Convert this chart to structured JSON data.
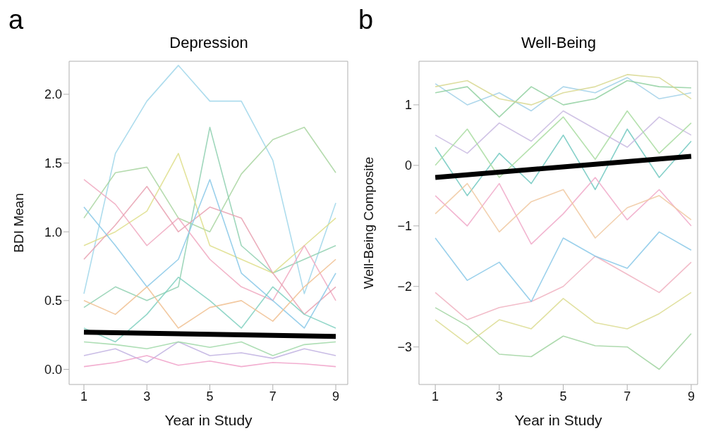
{
  "chart_data": [
    {
      "type": "line",
      "title": "Depression",
      "xlabel": "Year in Study",
      "ylabel": "BDI Mean",
      "annotations": [
        "a"
      ],
      "x": [
        1,
        2,
        3,
        4,
        5,
        6,
        7,
        8,
        9
      ],
      "xlim": [
        0.53,
        9.38
      ],
      "xticks": [
        1,
        3,
        5,
        7,
        9
      ],
      "ylim": [
        -0.11,
        2.24
      ],
      "yticks": [
        {
          "value": 0,
          "label": "0.0"
        },
        0.5,
        {
          "value": 1,
          "label": "1.0"
        },
        1.5,
        {
          "value": 2,
          "label": "2.0"
        }
      ],
      "series": [
        {
          "color": "#9fd6ea",
          "values": [
            0.55,
            1.57,
            1.95,
            2.21,
            1.95,
            1.95,
            1.52,
            0.55,
            1.21
          ]
        },
        {
          "color": "#a8d5a0",
          "values": [
            1.1,
            1.43,
            1.47,
            1.1,
            1.0,
            1.42,
            1.67,
            1.76,
            1.43
          ]
        },
        {
          "color": "#8fd0b0",
          "values": [
            0.45,
            0.6,
            0.5,
            0.6,
            1.76,
            0.9,
            0.7,
            0.8,
            0.9
          ]
        },
        {
          "color": "#dede8a",
          "values": [
            0.9,
            1.0,
            1.15,
            1.57,
            0.9,
            0.8,
            0.7,
            0.9,
            1.1
          ]
        },
        {
          "color": "#f0a8c0",
          "values": [
            1.38,
            1.2,
            0.9,
            1.1,
            0.8,
            0.6,
            0.5,
            0.9,
            0.5
          ]
        },
        {
          "color": "#e8a0b0",
          "values": [
            0.8,
            1.05,
            1.33,
            1.0,
            1.18,
            1.1,
            0.7,
            0.4,
            0.6
          ]
        },
        {
          "color": "#88c8e8",
          "values": [
            1.18,
            0.9,
            0.6,
            0.8,
            1.38,
            0.7,
            0.5,
            0.3,
            0.7
          ]
        },
        {
          "color": "#80d0c0",
          "values": [
            0.3,
            0.2,
            0.4,
            0.67,
            0.5,
            0.3,
            0.6,
            0.4,
            0.3
          ]
        },
        {
          "color": "#c0b0e0",
          "values": [
            0.1,
            0.15,
            0.05,
            0.2,
            0.1,
            0.12,
            0.08,
            0.15,
            0.1
          ]
        },
        {
          "color": "#f0c090",
          "values": [
            0.5,
            0.4,
            0.6,
            0.3,
            0.45,
            0.5,
            0.35,
            0.6,
            0.8
          ]
        },
        {
          "color": "#f0a0c8",
          "values": [
            0.02,
            0.05,
            0.1,
            0.03,
            0.06,
            0.02,
            0.05,
            0.04,
            0.02
          ]
        },
        {
          "color": "#a0d8a8",
          "values": [
            0.2,
            0.18,
            0.15,
            0.2,
            0.16,
            0.2,
            0.1,
            0.18,
            0.2
          ]
        },
        {
          "color": "#000000",
          "values": [
            0.27,
            null,
            null,
            null,
            null,
            null,
            null,
            null,
            0.24
          ]
        }
      ]
    },
    {
      "type": "line",
      "title": "Well-Being",
      "xlabel": "Year in Study",
      "ylabel": "Well-Being Composite",
      "annotations": [
        "b"
      ],
      "x": [
        1,
        2,
        3,
        4,
        5,
        6,
        7,
        8,
        9
      ],
      "xlim": [
        0.49,
        9.2
      ],
      "xticks": [
        1,
        3,
        5,
        7,
        9
      ],
      "ylim": [
        -3.62,
        1.72
      ],
      "yticks": [
        {
          "value": -3,
          "label": "−3"
        },
        {
          "value": -2,
          "label": "−2"
        },
        {
          "value": -1,
          "label": "−1"
        },
        0,
        1
      ],
      "series": [
        {
          "color": "#a0d4a0",
          "values": [
            -2.35,
            -2.65,
            -3.12,
            -3.16,
            -2.82,
            -2.98,
            -3.0,
            -3.37,
            -2.78
          ]
        },
        {
          "color": "#dcdc90",
          "values": [
            -2.55,
            -2.95,
            -2.55,
            -2.7,
            -2.2,
            -2.6,
            -2.7,
            -2.45,
            -2.1
          ]
        },
        {
          "color": "#f0b0c0",
          "values": [
            -2.1,
            -2.55,
            -2.35,
            -2.25,
            -2.0,
            -1.5,
            -1.8,
            -2.1,
            -1.6
          ]
        },
        {
          "color": "#a0d0e8",
          "values": [
            1.35,
            1.0,
            1.2,
            0.9,
            1.3,
            1.2,
            1.45,
            1.1,
            1.2
          ]
        },
        {
          "color": "#90d0a0",
          "values": [
            1.2,
            1.3,
            0.8,
            1.3,
            1.0,
            1.1,
            1.4,
            1.3,
            1.28
          ]
        },
        {
          "color": "#d8d890",
          "values": [
            1.3,
            1.4,
            1.1,
            1.0,
            1.2,
            1.3,
            1.5,
            1.45,
            1.1
          ]
        },
        {
          "color": "#70c8c0",
          "values": [
            0.3,
            -0.5,
            0.2,
            -0.3,
            0.5,
            -0.4,
            0.6,
            -0.2,
            0.4
          ]
        },
        {
          "color": "#f0a8c8",
          "values": [
            -0.5,
            -1.0,
            -0.3,
            -1.3,
            -0.8,
            -0.2,
            -0.9,
            -0.4,
            -1.0
          ]
        },
        {
          "color": "#88c8e8",
          "values": [
            -1.2,
            -1.9,
            -1.6,
            -2.25,
            -1.2,
            -1.5,
            -1.7,
            -1.1,
            -1.4
          ]
        },
        {
          "color": "#c8b8e0",
          "values": [
            0.5,
            0.2,
            0.7,
            0.4,
            0.9,
            0.6,
            0.3,
            0.8,
            0.5
          ]
        },
        {
          "color": "#f0c8a0",
          "values": [
            -0.8,
            -0.3,
            -1.1,
            -0.6,
            -0.4,
            -1.2,
            -0.7,
            -0.5,
            -0.9
          ]
        },
        {
          "color": "#a8dca0",
          "values": [
            0.0,
            0.6,
            -0.2,
            0.3,
            0.8,
            0.1,
            0.9,
            0.2,
            0.7
          ]
        },
        {
          "color": "#000000",
          "values": [
            -0.2,
            null,
            null,
            null,
            null,
            null,
            null,
            null,
            0.15
          ]
        }
      ]
    }
  ]
}
